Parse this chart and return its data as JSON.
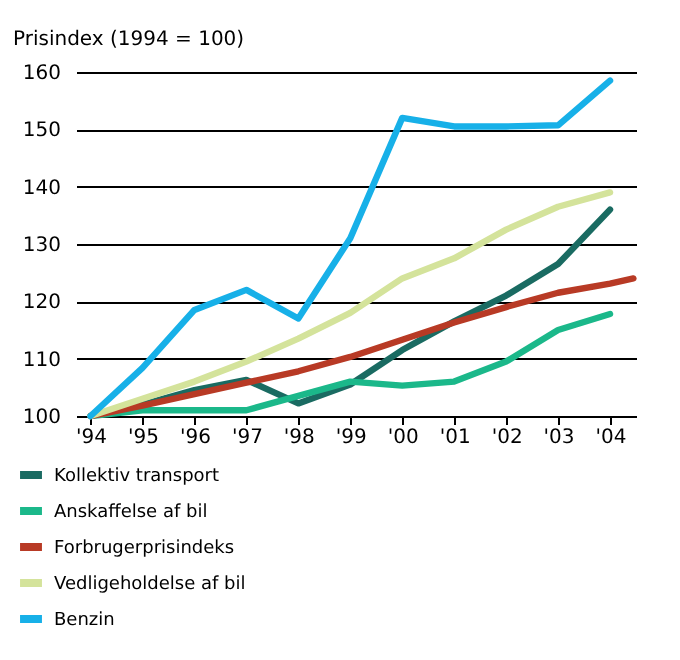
{
  "chart_data": {
    "type": "line",
    "ylabel": "Prisindex (1994 = 100)",
    "x": [
      1994,
      1995,
      1996,
      1997,
      1998,
      1999,
      2000,
      2001,
      2002,
      2003,
      2004
    ],
    "series": [
      {
        "name": "Kollektiv transport",
        "color": "#1a6b62",
        "values": [
          100,
          102,
          104.5,
          106.3,
          102.2,
          105.5,
          111.5,
          116.5,
          121,
          126.5,
          136
        ]
      },
      {
        "name": "Anskaffelse af bil",
        "color": "#1bb88a",
        "values": [
          100,
          101,
          101,
          101,
          103.5,
          106,
          105.3,
          106,
          109.5,
          115,
          117.8
        ]
      },
      {
        "name": "Forbrugerprisindeks",
        "color": "#b83a25",
        "x": [
          1994,
          1995,
          1996,
          1997,
          1998,
          1999,
          2000,
          2001,
          2002,
          2003,
          2004,
          2004.45
        ],
        "values": [
          100,
          101.8,
          103.8,
          105.8,
          107.8,
          110.3,
          113.3,
          116.3,
          119,
          121.5,
          123.1,
          124
        ]
      },
      {
        "name": "Vedligeholdelse af bil",
        "color": "#d4e39b",
        "values": [
          100,
          103,
          106,
          109.5,
          113.5,
          118,
          124,
          127.5,
          132.5,
          136.5,
          139
        ]
      },
      {
        "name": "Benzin",
        "color": "#17b0e8",
        "values": [
          100,
          108.4,
          118.5,
          122,
          117,
          131,
          152,
          150.5,
          150.5,
          150.7,
          158.5
        ]
      }
    ],
    "xlim": [
      1993.72,
      2004.5
    ],
    "xticks": [
      {
        "value": 1994,
        "label": "'94"
      },
      {
        "value": 1995,
        "label": "'95"
      },
      {
        "value": 1996,
        "label": "'96"
      },
      {
        "value": 1997,
        "label": "'97"
      },
      {
        "value": 1998,
        "label": "'98"
      },
      {
        "value": 1999,
        "label": "'99"
      },
      {
        "value": 2000,
        "label": "'00"
      },
      {
        "value": 2001,
        "label": "'01"
      },
      {
        "value": 2002,
        "label": "'02"
      },
      {
        "value": 2003,
        "label": "'03"
      },
      {
        "value": 2004,
        "label": "'04"
      }
    ],
    "ylim": [
      100,
      160
    ],
    "yticks": [
      100,
      110,
      120,
      130,
      140,
      150,
      160
    ],
    "grid": "y",
    "legend": "bottom",
    "marker": "none",
    "line_style": "solid"
  }
}
